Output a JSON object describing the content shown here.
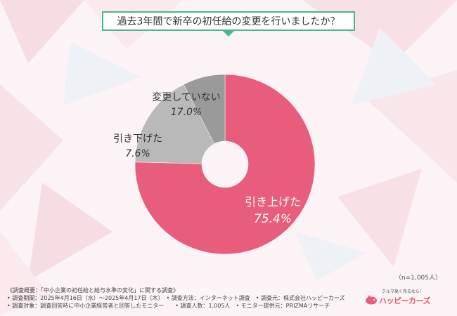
{
  "title": "過去3年間で新卒の初任給の変更を行いましたか？",
  "chart_data": {
    "type": "pie",
    "donut": true,
    "slices": [
      {
        "label": "引き上げた",
        "value": 75.4,
        "value_label": "75.4%",
        "color": "#e85c7c"
      },
      {
        "label": "変更していない",
        "value": 17.0,
        "value_label": "17.0%",
        "color": "#b9b9b9"
      },
      {
        "label": "引き下げた",
        "value": 7.6,
        "value_label": "7.6%",
        "color": "#9a9a9a"
      }
    ]
  },
  "sample_note": "（n=1,005人）",
  "notes": [
    "《調査概要：「中小企業の初任給と給与水準の変化」に関する調査》",
    "• 調査期間：2025年4月16日（水）～2025年4月17日（木）　• 調査方法：インターネット調査　• 調査元：株式会社ハッピーカーズ",
    "• 調査対象：調査回答時に中小企業経営者と回答したモニター　　• 調査人数：1,005人　• モニター提供元：PRIZMAリサーチ"
  ],
  "logo": {
    "slogan": "クルマ高く売るなら！",
    "name": "ハッピーカーズ",
    "icon": "pig-icon"
  },
  "colors": {
    "accent": "#45b98a",
    "raise": "#e85c7c",
    "unchanged": "#b9b9b9",
    "lower": "#9a9a9a"
  }
}
